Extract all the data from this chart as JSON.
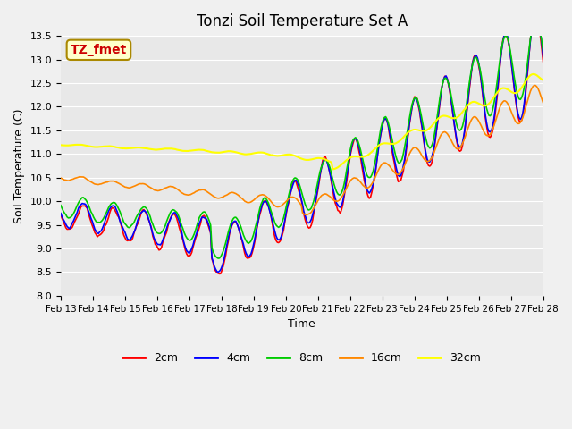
{
  "title": "Tonzi Soil Temperature Set A",
  "xlabel": "Time",
  "ylabel": "Soil Temperature (C)",
  "ylim": [
    8.0,
    13.5
  ],
  "yticks": [
    8.0,
    8.5,
    9.0,
    9.5,
    10.0,
    10.5,
    11.0,
    11.5,
    12.0,
    12.5,
    13.0,
    13.5
  ],
  "xtick_labels": [
    "Feb 13",
    "Feb 14",
    "Feb 15",
    "Feb 16",
    "Feb 17",
    "Feb 18",
    "Feb 19",
    "Feb 20",
    "Feb 21",
    "Feb 22",
    "Feb 23",
    "Feb 24",
    "Feb 25",
    "Feb 26",
    "Feb 27",
    "Feb 28"
  ],
  "colors": {
    "2cm": "#ff0000",
    "4cm": "#0000ff",
    "8cm": "#00cc00",
    "16cm": "#ff8800",
    "32cm": "#ffff00"
  },
  "legend_label": "TZ_fmet",
  "legend_box_color": "#ffffcc",
  "legend_text_color": "#cc0000",
  "background_color": "#e8e8e8",
  "plot_bg_color": "#e8e8e8"
}
